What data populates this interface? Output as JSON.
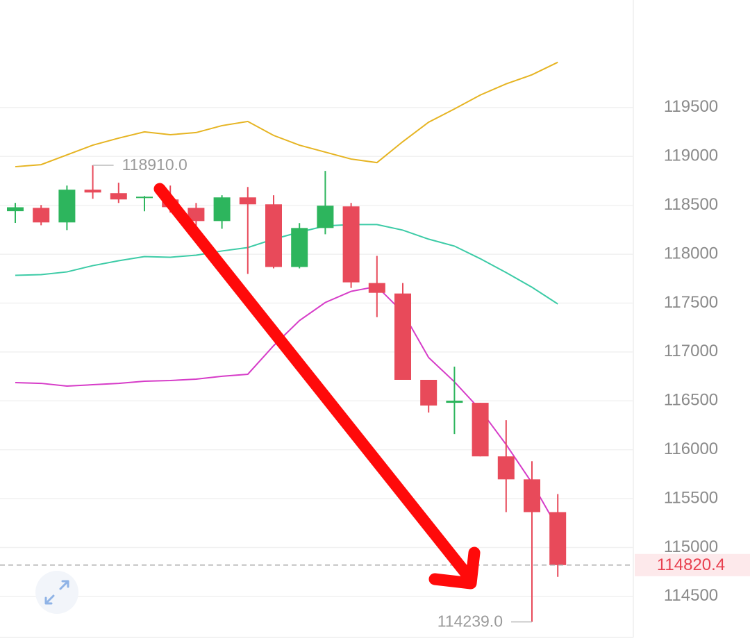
{
  "chart_data": {
    "type": "candlestick",
    "ylim": [
      114080,
      120600
    ],
    "yticks": [
      114500,
      115000,
      115500,
      116000,
      116500,
      117000,
      117500,
      118000,
      118500,
      119000,
      119500
    ],
    "grid": true,
    "up_color": "#2db55d",
    "down_color": "#e84a5a",
    "open": [
      118440,
      118474,
      118325,
      118660,
      118624,
      118574,
      118560,
      118474,
      118339,
      118581,
      118510,
      117869,
      118268,
      118489,
      117705,
      117598,
      116715,
      116480,
      116480,
      115932,
      115697,
      115362
    ],
    "high": [
      118525,
      118503,
      118702,
      118910,
      118731,
      118595,
      118702,
      118524,
      118603,
      118688,
      118603,
      118318,
      118852,
      118524,
      117983,
      117705,
      116715,
      116850,
      116480,
      116302,
      115882,
      115547
    ],
    "low": [
      118320,
      118296,
      118246,
      118567,
      118524,
      118439,
      118425,
      118260,
      118260,
      117798,
      117855,
      117855,
      118204,
      117655,
      117356,
      116715,
      116380,
      116160,
      115932,
      115362,
      114239,
      114700
    ],
    "close": [
      118480,
      118325,
      118660,
      118631,
      118560,
      118588,
      118481,
      118339,
      118581,
      118510,
      117869,
      118268,
      118496,
      117712,
      117605,
      116715,
      116452,
      116502,
      115932,
      115697,
      115362,
      114820
    ],
    "lines": [
      {
        "color": "#e6b422",
        "values": [
          118895,
          118916,
          119016,
          119115,
          119187,
          119251,
          119222,
          119244,
          119315,
          119358,
          119215,
          119115,
          119044,
          118973,
          118937,
          119151,
          119350,
          119486,
          119628,
          119742,
          119835,
          119963
        ]
      },
      {
        "color": "#3ccba6",
        "values": [
          117784,
          117791,
          117819,
          117883,
          117933,
          117976,
          117969,
          117990,
          118033,
          118068,
          118154,
          118225,
          118289,
          118303,
          118303,
          118246,
          118154,
          118083,
          117954,
          117812,
          117662,
          117491
        ]
      },
      {
        "color": "#d63cc8",
        "values": [
          116687,
          116679,
          116651,
          116665,
          116679,
          116701,
          116708,
          116722,
          116751,
          116772,
          117064,
          117321,
          117506,
          117620,
          117670,
          117406,
          116943,
          116694,
          116409,
          116053,
          115661,
          115198
        ]
      }
    ],
    "high_annotation": {
      "value": 118910,
      "label": "118910.0"
    },
    "low_annotation": {
      "value": 114239,
      "label": "114239.0"
    },
    "last_price": 114820.4,
    "last_price_color": "#e8404f"
  }
}
